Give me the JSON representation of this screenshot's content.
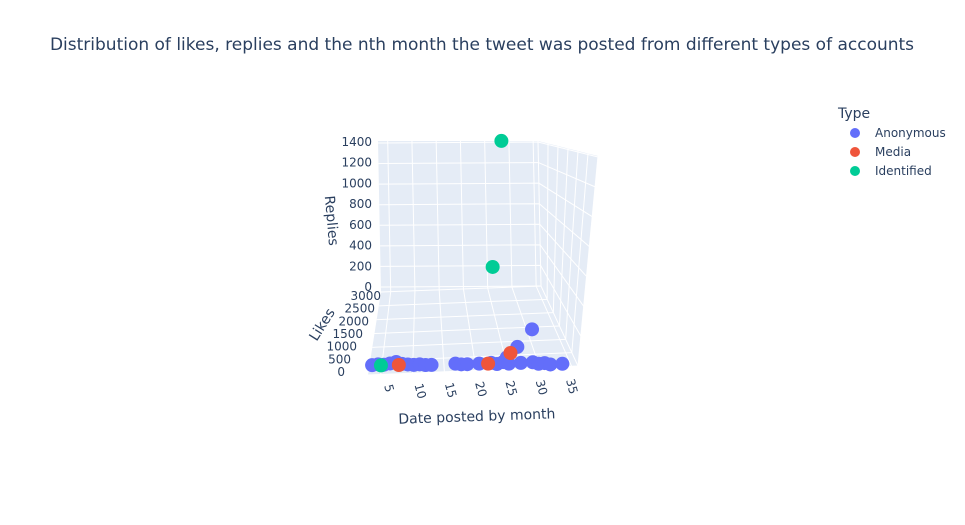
{
  "chart_data": {
    "type": "scatter3d",
    "title": "Distribution of likes, replies and the nth month the tweet was posted from different types of accounts",
    "xlabel": "Date posted by month",
    "ylabel": "Likes",
    "zlabel": "Replies",
    "x_ticks": [
      "5",
      "10",
      "15",
      "20",
      "25",
      "30",
      "35"
    ],
    "y_ticks": [
      "0",
      "500",
      "1000",
      "1500",
      "2000",
      "2500",
      "3000"
    ],
    "z_ticks": [
      "0",
      "200",
      "400",
      "600",
      "800",
      "1000",
      "1200",
      "1400"
    ],
    "xlim": [
      3,
      36
    ],
    "ylim": [
      0,
      3000
    ],
    "zlim": [
      0,
      1400
    ],
    "legend": {
      "title": "Type",
      "placement": "top-right"
    },
    "series": [
      {
        "name": "Anonymous",
        "color": "#636efa",
        "points": [
          {
            "x": 3,
            "y": 20,
            "z": 2
          },
          {
            "x": 4,
            "y": 40,
            "z": 4
          },
          {
            "x": 5,
            "y": 30,
            "z": 3
          },
          {
            "x": 6,
            "y": 60,
            "z": 6
          },
          {
            "x": 7,
            "y": 90,
            "z": 10
          },
          {
            "x": 8,
            "y": 50,
            "z": 5
          },
          {
            "x": 9,
            "y": 40,
            "z": 3
          },
          {
            "x": 10,
            "y": 30,
            "z": 2
          },
          {
            "x": 11,
            "y": 40,
            "z": 4
          },
          {
            "x": 12,
            "y": 20,
            "z": 3
          },
          {
            "x": 13,
            "y": 30,
            "z": 2
          },
          {
            "x": 17,
            "y": 60,
            "z": 5
          },
          {
            "x": 18,
            "y": 40,
            "z": 4
          },
          {
            "x": 19,
            "y": 50,
            "z": 3
          },
          {
            "x": 21,
            "y": 60,
            "z": 5
          },
          {
            "x": 23,
            "y": 80,
            "z": 6
          },
          {
            "x": 24,
            "y": 50,
            "z": 4
          },
          {
            "x": 25,
            "y": 100,
            "z": 8
          },
          {
            "x": 25.5,
            "y": 250,
            "z": 12
          },
          {
            "x": 26,
            "y": 60,
            "z": 5
          },
          {
            "x": 27,
            "y": 600,
            "z": 20
          },
          {
            "x": 28,
            "y": 80,
            "z": 6
          },
          {
            "x": 29,
            "y": 1200,
            "z": 30
          },
          {
            "x": 30,
            "y": 100,
            "z": 7
          },
          {
            "x": 31,
            "y": 60,
            "z": 4
          },
          {
            "x": 32,
            "y": 80,
            "z": 5
          },
          {
            "x": 33,
            "y": 40,
            "z": 3
          },
          {
            "x": 35,
            "y": 60,
            "z": 4
          }
        ]
      },
      {
        "name": "Media",
        "color": "#ef553b",
        "points": [
          {
            "x": 7.5,
            "y": 20,
            "z": 3
          },
          {
            "x": 22.5,
            "y": 60,
            "z": 5
          },
          {
            "x": 26,
            "y": 400,
            "z": 15
          }
        ]
      },
      {
        "name": "Identified",
        "color": "#00cc96",
        "points": [
          {
            "x": 4.5,
            "y": 10,
            "z": 2
          },
          {
            "x": 23,
            "y": 400,
            "z": 570
          },
          {
            "x": 24,
            "y": 1000,
            "z": 1280
          }
        ]
      }
    ]
  }
}
